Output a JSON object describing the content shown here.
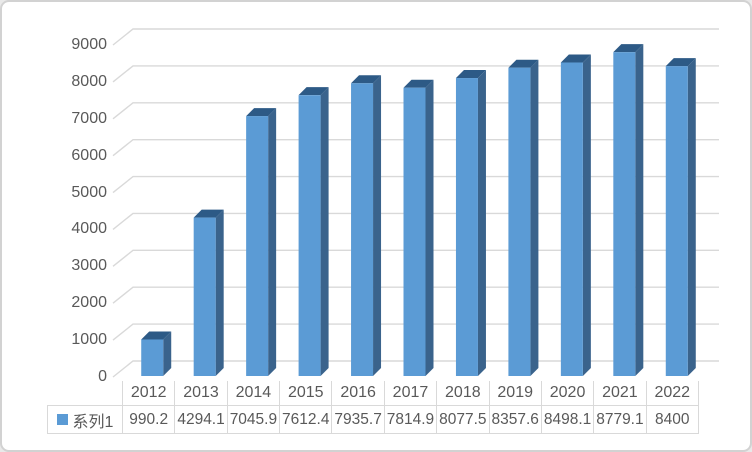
{
  "chart_data": {
    "type": "bar",
    "subtype": "3d-column",
    "title": "",
    "xlabel": "",
    "ylabel": "",
    "categories": [
      "2012",
      "2013",
      "2014",
      "2015",
      "2016",
      "2017",
      "2018",
      "2019",
      "2020",
      "2021",
      "2022"
    ],
    "series": [
      {
        "name": "系列1",
        "values": [
          990.2,
          4294.1,
          7045.9,
          7612.4,
          7935.7,
          7814.9,
          8077.5,
          8357.6,
          8498.1,
          8779.1,
          8400
        ],
        "value_labels": [
          "990.2",
          "4294.1",
          "7045.9",
          "7612.4",
          "7935.7",
          "7814.9",
          "8077.5",
          "8357.6",
          "8498.1",
          "8779.1",
          "8400"
        ]
      }
    ],
    "ylim": [
      0,
      9000
    ],
    "ytick_interval": 1000,
    "ytick_labels": [
      "0",
      "1000",
      "2000",
      "3000",
      "4000",
      "5000",
      "6000",
      "7000",
      "8000",
      "9000"
    ],
    "grid": true,
    "legend_position": "data-table-left",
    "data_table_shown": true
  },
  "colors": {
    "bar_front": "#5b9bd5",
    "bar_top": "#2d5a86",
    "bar_side": "#3a638c",
    "gridline": "#d9d9d9",
    "axis_text": "#595959",
    "table_text": "#595959",
    "table_border": "#d9d9d9",
    "legend_swatch": "#5b9bd5",
    "frame_border": "#d2d2d2",
    "background": "#ffffff"
  }
}
